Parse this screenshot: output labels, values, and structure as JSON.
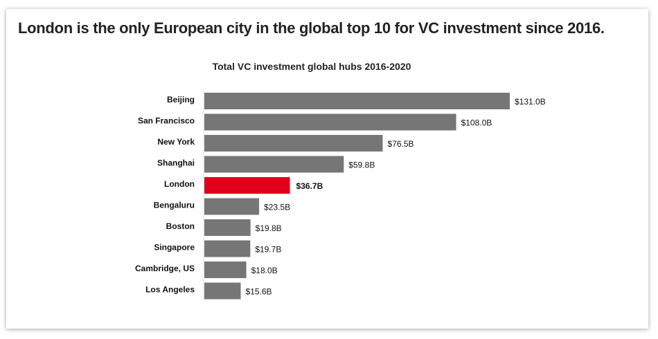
{
  "headline": "London is the only European city in the global top 10 for VC investment since 2016.",
  "chart_data": {
    "type": "bar",
    "orientation": "horizontal",
    "title": "Total VC investment global hubs 2016-2020",
    "xlabel": "",
    "ylabel": "",
    "categories": [
      "Beijing",
      "San Francisco",
      "New York",
      "Shanghai",
      "London",
      "Bengaluru",
      "Boston",
      "Singapore",
      "Cambridge, US",
      "Los Angeles"
    ],
    "values": [
      131.0,
      108.0,
      76.5,
      59.8,
      36.7,
      23.5,
      19.8,
      19.7,
      18.0,
      15.6
    ],
    "labels": [
      "$131.0B",
      "$108.0B",
      "$76.5B",
      "$59.8B",
      "$36.7B",
      "$23.5B",
      "$19.8B",
      "$19.7B",
      "$18.0B",
      "$15.6B"
    ],
    "highlight": "London",
    "unit": "USD billions",
    "xlim": [
      0,
      131
    ],
    "grid": false,
    "colors": {
      "default": "#767676",
      "highlight": "#e0001b"
    }
  }
}
